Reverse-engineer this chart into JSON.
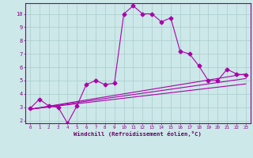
{
  "xlabel": "Windchill (Refroidissement éolien,°C)",
  "background_color": "#cce8e8",
  "line_color": "#aa00aa",
  "grid_color": "#aacccc",
  "axis_color": "#880088",
  "tick_color": "#880088",
  "label_color": "#660066",
  "xlim": [
    -0.5,
    23.5
  ],
  "ylim": [
    1.8,
    10.8
  ],
  "xticks": [
    0,
    1,
    2,
    3,
    4,
    5,
    6,
    7,
    8,
    9,
    10,
    11,
    12,
    13,
    14,
    15,
    16,
    17,
    18,
    19,
    20,
    21,
    22,
    23
  ],
  "yticks": [
    2,
    3,
    4,
    5,
    6,
    7,
    8,
    9,
    10
  ],
  "main_line_x": [
    0,
    1,
    2,
    3,
    4,
    5,
    6,
    7,
    8,
    9,
    10,
    11,
    12,
    13,
    14,
    15,
    16,
    17,
    18,
    19,
    20,
    21,
    22,
    23
  ],
  "main_line_y": [
    2.9,
    3.6,
    3.1,
    3.0,
    1.8,
    3.1,
    4.7,
    5.0,
    4.7,
    4.8,
    10.0,
    10.6,
    10.0,
    10.0,
    9.4,
    9.7,
    7.2,
    7.0,
    6.1,
    5.0,
    5.0,
    5.85,
    5.5,
    5.4
  ],
  "line2_x": [
    0,
    23
  ],
  "line2_y": [
    2.85,
    5.5
  ],
  "line3_x": [
    0,
    23
  ],
  "line3_y": [
    2.85,
    5.15
  ],
  "line4_x": [
    0,
    23
  ],
  "line4_y": [
    2.85,
    4.75
  ],
  "marker_size": 2.5,
  "line_width": 0.8
}
